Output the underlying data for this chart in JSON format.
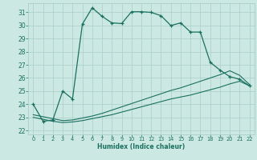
{
  "xlabel": "Humidex (Indice chaleur)",
  "background_color": "#cce8e2",
  "grid_color": "#aacec8",
  "line_color": "#1a7060",
  "xlim": [
    -0.5,
    22.5
  ],
  "ylim": [
    21.7,
    31.7
  ],
  "yticks": [
    22,
    23,
    24,
    25,
    26,
    27,
    28,
    29,
    30,
    31
  ],
  "xticks": [
    0,
    1,
    2,
    3,
    4,
    5,
    6,
    7,
    8,
    9,
    10,
    11,
    12,
    13,
    14,
    15,
    16,
    17,
    18,
    19,
    20,
    21,
    22
  ],
  "series1_x": [
    0,
    1,
    2,
    3,
    4,
    5,
    6,
    7,
    8,
    9,
    10,
    11,
    12,
    13,
    14,
    15,
    16,
    17,
    18,
    19,
    20,
    21,
    22
  ],
  "series1_y": [
    24.0,
    22.7,
    22.8,
    25.0,
    24.4,
    30.1,
    31.35,
    30.7,
    30.2,
    30.15,
    31.05,
    31.05,
    31.0,
    30.75,
    30.0,
    30.2,
    29.5,
    29.5,
    27.2,
    26.6,
    26.1,
    25.9,
    25.4
  ],
  "series2_x": [
    0,
    1,
    2,
    3,
    4,
    5,
    6,
    7,
    8,
    9,
    10,
    11,
    12,
    13,
    14,
    15,
    16,
    17,
    18,
    19,
    20,
    21,
    22
  ],
  "series2_y": [
    23.0,
    22.85,
    22.7,
    22.6,
    22.65,
    22.75,
    22.9,
    23.05,
    23.2,
    23.4,
    23.6,
    23.8,
    24.0,
    24.2,
    24.4,
    24.55,
    24.7,
    24.9,
    25.1,
    25.3,
    25.55,
    25.75,
    25.4
  ],
  "series3_x": [
    0,
    1,
    2,
    3,
    4,
    5,
    6,
    7,
    8,
    9,
    10,
    11,
    12,
    13,
    14,
    15,
    16,
    17,
    18,
    19,
    20,
    21,
    22
  ],
  "series3_y": [
    23.2,
    23.05,
    22.9,
    22.75,
    22.8,
    22.95,
    23.1,
    23.3,
    23.55,
    23.8,
    24.05,
    24.3,
    24.55,
    24.8,
    25.05,
    25.25,
    25.5,
    25.75,
    26.0,
    26.25,
    26.55,
    26.2,
    25.5
  ]
}
